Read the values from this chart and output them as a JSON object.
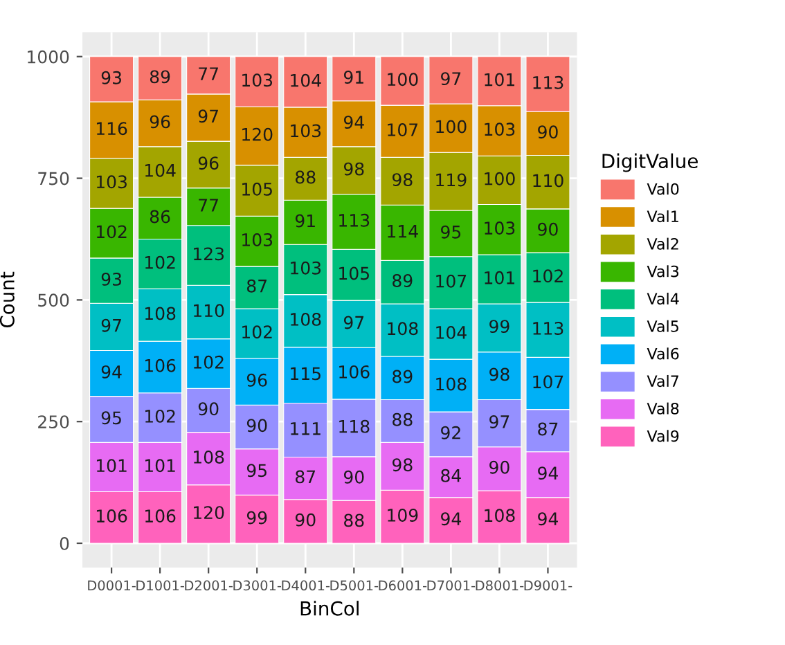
{
  "chart_data": {
    "type": "bar",
    "stacked": true,
    "xlabel": "BinCol",
    "ylabel": "Count",
    "legend_title": "DigitValue",
    "categories": [
      "D0001-",
      "D1001-",
      "D2001-",
      "D3001-",
      "D4001-",
      "D5001-",
      "D6001-",
      "D7001-",
      "D8001-",
      "D9001-"
    ],
    "series": [
      {
        "name": "Val9",
        "color": "#ff62bc",
        "values": [
          106,
          106,
          120,
          99,
          90,
          88,
          109,
          94,
          108,
          94
        ]
      },
      {
        "name": "Val8",
        "color": "#e76bf3",
        "values": [
          101,
          101,
          108,
          95,
          87,
          90,
          98,
          84,
          90,
          94
        ]
      },
      {
        "name": "Val7",
        "color": "#9590ff",
        "values": [
          95,
          102,
          90,
          90,
          111,
          118,
          88,
          92,
          97,
          87
        ]
      },
      {
        "name": "Val6",
        "color": "#00b0f6",
        "values": [
          94,
          106,
          102,
          96,
          115,
          106,
          89,
          108,
          98,
          107
        ]
      },
      {
        "name": "Val5",
        "color": "#00bfc4",
        "values": [
          97,
          108,
          110,
          102,
          108,
          97,
          108,
          104,
          99,
          113
        ]
      },
      {
        "name": "Val4",
        "color": "#00bf7d",
        "values": [
          93,
          102,
          123,
          87,
          103,
          105,
          89,
          107,
          101,
          102
        ]
      },
      {
        "name": "Val3",
        "color": "#39b600",
        "values": [
          102,
          86,
          77,
          103,
          91,
          113,
          114,
          95,
          103,
          90
        ]
      },
      {
        "name": "Val2",
        "color": "#a3a500",
        "values": [
          103,
          104,
          96,
          105,
          88,
          98,
          98,
          119,
          100,
          110
        ]
      },
      {
        "name": "Val1",
        "color": "#d89000",
        "values": [
          116,
          96,
          97,
          120,
          103,
          94,
          107,
          100,
          103,
          90
        ]
      },
      {
        "name": "Val0",
        "color": "#f8766d",
        "values": [
          93,
          89,
          77,
          103,
          104,
          91,
          100,
          97,
          101,
          113
        ]
      }
    ],
    "ylim": [
      -50,
      1050
    ],
    "yticks": [
      0,
      250,
      500,
      750,
      1000
    ],
    "grid": true,
    "legend": "right",
    "data_labels": true
  }
}
